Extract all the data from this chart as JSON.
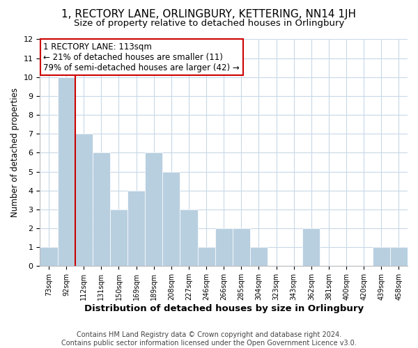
{
  "title": "1, RECTORY LANE, ORLINGBURY, KETTERING, NN14 1JH",
  "subtitle": "Size of property relative to detached houses in Orlingbury",
  "xlabel": "Distribution of detached houses by size in Orlingbury",
  "ylabel": "Number of detached properties",
  "bar_labels": [
    "73sqm",
    "92sqm",
    "112sqm",
    "131sqm",
    "150sqm",
    "169sqm",
    "189sqm",
    "208sqm",
    "227sqm",
    "246sqm",
    "266sqm",
    "285sqm",
    "304sqm",
    "323sqm",
    "343sqm",
    "362sqm",
    "381sqm",
    "400sqm",
    "420sqm",
    "439sqm",
    "458sqm"
  ],
  "bar_values": [
    1,
    10,
    7,
    6,
    3,
    4,
    6,
    5,
    3,
    1,
    2,
    2,
    1,
    0,
    0,
    2,
    0,
    0,
    0,
    1,
    1
  ],
  "highlight_index": 2,
  "bar_color": "#b8cfe0",
  "highlight_line_color": "#cc0000",
  "ylim": [
    0,
    12
  ],
  "yticks": [
    0,
    1,
    2,
    3,
    4,
    5,
    6,
    7,
    8,
    9,
    10,
    11,
    12
  ],
  "annotation_text": "1 RECTORY LANE: 113sqm\n← 21% of detached houses are smaller (11)\n79% of semi-detached houses are larger (42) →",
  "footer_line1": "Contains HM Land Registry data © Crown copyright and database right 2024.",
  "footer_line2": "Contains public sector information licensed under the Open Government Licence v3.0.",
  "title_fontsize": 11,
  "subtitle_fontsize": 9.5,
  "xlabel_fontsize": 9.5,
  "ylabel_fontsize": 8.5,
  "annotation_fontsize": 8.5,
  "footer_fontsize": 7,
  "grid_color": "#c8d8e8",
  "background_color": "#ffffff",
  "annotation_box_color": "#ffffff",
  "annotation_border_color": "#cc0000"
}
